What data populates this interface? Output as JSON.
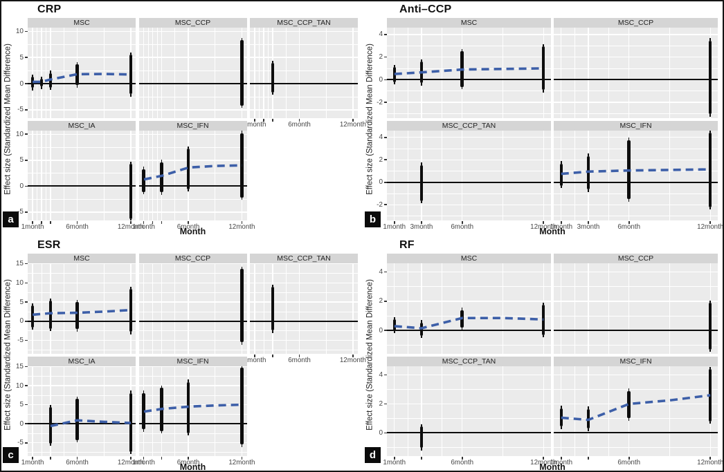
{
  "figure": {
    "ylabel": "Effect size (Standardized Mean Difference)",
    "xlabel": "Month",
    "colors": {
      "panel_bg": "#EBEBEB",
      "strip_bg": "#D5D5D5",
      "gridline": "#FFFFFF",
      "bar": "#0D0D0D",
      "trend_blue": "#3D5FA8",
      "zero_line": "#0C0C0C",
      "border": "#141414",
      "badge_bg": "#0B0B0B",
      "badge_text": "#FFFFFF"
    }
  },
  "chart_data": [
    {
      "type": "errorbar",
      "badge": "a",
      "title": "CRP",
      "ylim": [
        -6.6,
        10.7
      ],
      "yticks": [
        10,
        5,
        0,
        -5
      ],
      "xticks": [
        {
          "m": 1,
          "label": "1month"
        },
        {
          "m": 2,
          "label": ""
        },
        {
          "m": 3,
          "label": ""
        },
        {
          "m": 6,
          "label": "6month"
        },
        {
          "m": 12,
          "label": "12month"
        }
      ],
      "xminor": [
        1.5,
        2.5,
        4.5,
        9
      ],
      "facets": [
        {
          "name": "MSC",
          "row": 0,
          "col": 0,
          "axis": false,
          "bars": [
            {
              "m": 1,
              "lo": -0.8,
              "hi": 1.3
            },
            {
              "m": 2,
              "lo": -0.55,
              "hi": 0.9
            },
            {
              "m": 3,
              "lo": -0.75,
              "hi": 2.0
            },
            {
              "m": 6,
              "lo": -0.3,
              "hi": 3.7
            },
            {
              "m": 12,
              "lo": -2.0,
              "hi": 5.5
            }
          ],
          "trend": [
            [
              1,
              0.35
            ],
            [
              2,
              0.35
            ],
            [
              3,
              0.8
            ],
            [
              6,
              1.8
            ],
            [
              9,
              1.85
            ],
            [
              12,
              1.75
            ]
          ]
        },
        {
          "name": "MSC_CCP",
          "row": 0,
          "col": 1,
          "axis": false,
          "bars": [
            {
              "m": 12,
              "lo": -4.2,
              "hi": 8.3
            }
          ],
          "trend": []
        },
        {
          "name": "MSC_CCP_TAN",
          "row": 0,
          "col": 2,
          "axis": true,
          "bars": [
            {
              "m": 3,
              "lo": -1.7,
              "hi": 3.9
            }
          ],
          "trend": []
        },
        {
          "name": "MSC_IA",
          "row": 1,
          "col": 0,
          "axis": true,
          "bars": [
            {
              "m": 12,
              "lo": -6.4,
              "hi": 4.3
            }
          ],
          "trend": []
        },
        {
          "name": "MSC_IFN",
          "row": 1,
          "col": 1,
          "axis": true,
          "bars": [
            {
              "m": 1,
              "lo": -1.1,
              "hi": 3.3
            },
            {
              "m": 3,
              "lo": -1.2,
              "hi": 4.6
            },
            {
              "m": 6,
              "lo": -0.6,
              "hi": 7.2
            },
            {
              "m": 12,
              "lo": -2.2,
              "hi": 10.2
            }
          ],
          "trend": [
            [
              1,
              1.3
            ],
            [
              3,
              2.0
            ],
            [
              6,
              3.6
            ],
            [
              9,
              3.9
            ],
            [
              12,
              4.0
            ]
          ]
        }
      ]
    },
    {
      "type": "errorbar",
      "badge": "b",
      "title": "Anti–CCP",
      "ylim": [
        -3.4,
        4.6
      ],
      "yticks": [
        4,
        2,
        0,
        -2
      ],
      "xticks": [
        {
          "m": 1,
          "label": "1month"
        },
        {
          "m": 3,
          "label": "3month"
        },
        {
          "m": 6,
          "label": "6month"
        },
        {
          "m": 12,
          "label": "12month"
        }
      ],
      "xminor": [
        2,
        4.5,
        9
      ],
      "facets": [
        {
          "name": "MSC",
          "row": 0,
          "col": 0,
          "axis": false,
          "bars": [
            {
              "m": 1,
              "lo": -0.2,
              "hi": 1.1
            },
            {
              "m": 3,
              "lo": -0.3,
              "hi": 1.6
            },
            {
              "m": 6,
              "lo": -0.65,
              "hi": 2.5
            },
            {
              "m": 12,
              "lo": -0.9,
              "hi": 2.95
            }
          ],
          "trend": [
            [
              1,
              0.5
            ],
            [
              3,
              0.65
            ],
            [
              6,
              0.9
            ],
            [
              9,
              0.95
            ],
            [
              12,
              1.0
            ]
          ]
        },
        {
          "name": "MSC_CCP",
          "row": 0,
          "col": 1,
          "axis": false,
          "bars": [
            {
              "m": 12,
              "lo": -3.05,
              "hi": 3.45
            }
          ],
          "trend": []
        },
        {
          "name": "MSC_CCP_TAN",
          "row": 1,
          "col": 0,
          "axis": true,
          "bars": [
            {
              "m": 3,
              "lo": -1.65,
              "hi": 1.55
            }
          ],
          "trend": []
        },
        {
          "name": "MSC_IFN",
          "row": 1,
          "col": 1,
          "axis": true,
          "bars": [
            {
              "m": 1,
              "lo": -0.3,
              "hi": 1.65
            },
            {
              "m": 3,
              "lo": -0.65,
              "hi": 2.35
            },
            {
              "m": 6,
              "lo": -1.5,
              "hi": 3.75
            },
            {
              "m": 12,
              "lo": -2.2,
              "hi": 4.4
            }
          ],
          "trend": [
            [
              1,
              0.75
            ],
            [
              3,
              0.95
            ],
            [
              6,
              1.05
            ],
            [
              9,
              1.1
            ],
            [
              12,
              1.15
            ]
          ]
        }
      ]
    },
    {
      "type": "errorbar",
      "badge": "c",
      "title": "ESR",
      "ylim": [
        -8.5,
        15.1
      ],
      "yticks": [
        15,
        10,
        5,
        0,
        -5
      ],
      "xticks": [
        {
          "m": 1,
          "label": "1month"
        },
        {
          "m": 3,
          "label": ""
        },
        {
          "m": 6,
          "label": "6month"
        },
        {
          "m": 12,
          "label": "12month"
        }
      ],
      "xminor": [
        2,
        4.5,
        9
      ],
      "facets": [
        {
          "name": "MSC",
          "row": 0,
          "col": 0,
          "axis": false,
          "bars": [
            {
              "m": 1,
              "lo": -1.6,
              "hi": 4.1
            },
            {
              "m": 3,
              "lo": -2.0,
              "hi": 5.3
            },
            {
              "m": 6,
              "lo": -2.1,
              "hi": 5.0
            },
            {
              "m": 12,
              "lo": -2.8,
              "hi": 8.4
            }
          ],
          "trend": [
            [
              1,
              1.7
            ],
            [
              3,
              2.1
            ],
            [
              6,
              2.2
            ],
            [
              9,
              2.5
            ],
            [
              12,
              2.9
            ]
          ]
        },
        {
          "name": "MSC_CCP",
          "row": 0,
          "col": 1,
          "axis": false,
          "bars": [
            {
              "m": 12,
              "lo": -5.5,
              "hi": 13.6
            }
          ],
          "trend": []
        },
        {
          "name": "MSC_CCP_TAN",
          "row": 0,
          "col": 2,
          "axis": true,
          "bars": [
            {
              "m": 3,
              "lo": -2.4,
              "hi": 8.9
            }
          ],
          "trend": []
        },
        {
          "name": "MSC_IA",
          "row": 1,
          "col": 0,
          "axis": true,
          "bars": [
            {
              "m": 3,
              "lo": -5.2,
              "hi": 4.3
            },
            {
              "m": 6,
              "lo": -4.3,
              "hi": 6.5
            },
            {
              "m": 12,
              "lo": -7.4,
              "hi": 8.1
            }
          ],
          "trend": [
            [
              3,
              -0.6
            ],
            [
              6,
              0.9
            ],
            [
              9,
              0.5
            ],
            [
              12,
              0.2
            ]
          ]
        },
        {
          "name": "MSC_IFN",
          "row": 1,
          "col": 1,
          "axis": true,
          "bars": [
            {
              "m": 1,
              "lo": -1.5,
              "hi": 8.1
            },
            {
              "m": 3,
              "lo": -1.9,
              "hi": 9.4
            },
            {
              "m": 6,
              "lo": -2.5,
              "hi": 11.0
            },
            {
              "m": 12,
              "lo": -5.5,
              "hi": 14.7
            }
          ],
          "trend": [
            [
              1,
              3.2
            ],
            [
              3,
              3.9
            ],
            [
              6,
              4.5
            ],
            [
              9,
              4.8
            ],
            [
              12,
              5.0
            ]
          ]
        }
      ]
    },
    {
      "type": "errorbar",
      "badge": "d",
      "title": "RF",
      "ylim": [
        -1.6,
        4.6
      ],
      "yticks": [
        4,
        2,
        0
      ],
      "xticks": [
        {
          "m": 1,
          "label": "1month"
        },
        {
          "m": 3,
          "label": ""
        },
        {
          "m": 6,
          "label": "6month"
        },
        {
          "m": 12,
          "label": "12month"
        }
      ],
      "xminor": [
        2,
        4.5,
        9
      ],
      "facets": [
        {
          "name": "MSC",
          "row": 0,
          "col": 0,
          "axis": false,
          "bars": [
            {
              "m": 1,
              "lo": 0.0,
              "hi": 0.75
            },
            {
              "m": 3,
              "lo": -0.35,
              "hi": 0.55
            },
            {
              "m": 6,
              "lo": 0.2,
              "hi": 1.4
            },
            {
              "m": 12,
              "lo": -0.3,
              "hi": 1.75
            }
          ],
          "trend": [
            [
              1,
              0.3
            ],
            [
              3,
              0.15
            ],
            [
              6,
              0.85
            ],
            [
              9,
              0.85
            ],
            [
              12,
              0.75
            ]
          ]
        },
        {
          "name": "MSC_CCP",
          "row": 0,
          "col": 1,
          "axis": false,
          "bars": [
            {
              "m": 12,
              "lo": -1.3,
              "hi": 1.9
            }
          ],
          "trend": []
        },
        {
          "name": "MSC_CCP_TAN",
          "row": 1,
          "col": 0,
          "axis": true,
          "bars": [
            {
              "m": 3,
              "lo": -1.05,
              "hi": 0.45
            }
          ],
          "trend": []
        },
        {
          "name": "MSC_IFN",
          "row": 1,
          "col": 1,
          "axis": true,
          "bars": [
            {
              "m": 1,
              "lo": 0.45,
              "hi": 1.7
            },
            {
              "m": 3,
              "lo": 0.3,
              "hi": 1.65
            },
            {
              "m": 6,
              "lo": 1.0,
              "hi": 2.9
            },
            {
              "m": 12,
              "lo": 0.8,
              "hi": 4.4
            }
          ],
          "trend": [
            [
              1,
              1.05
            ],
            [
              3,
              0.9
            ],
            [
              6,
              2.0
            ],
            [
              9,
              2.25
            ],
            [
              12,
              2.6
            ]
          ]
        }
      ]
    }
  ]
}
